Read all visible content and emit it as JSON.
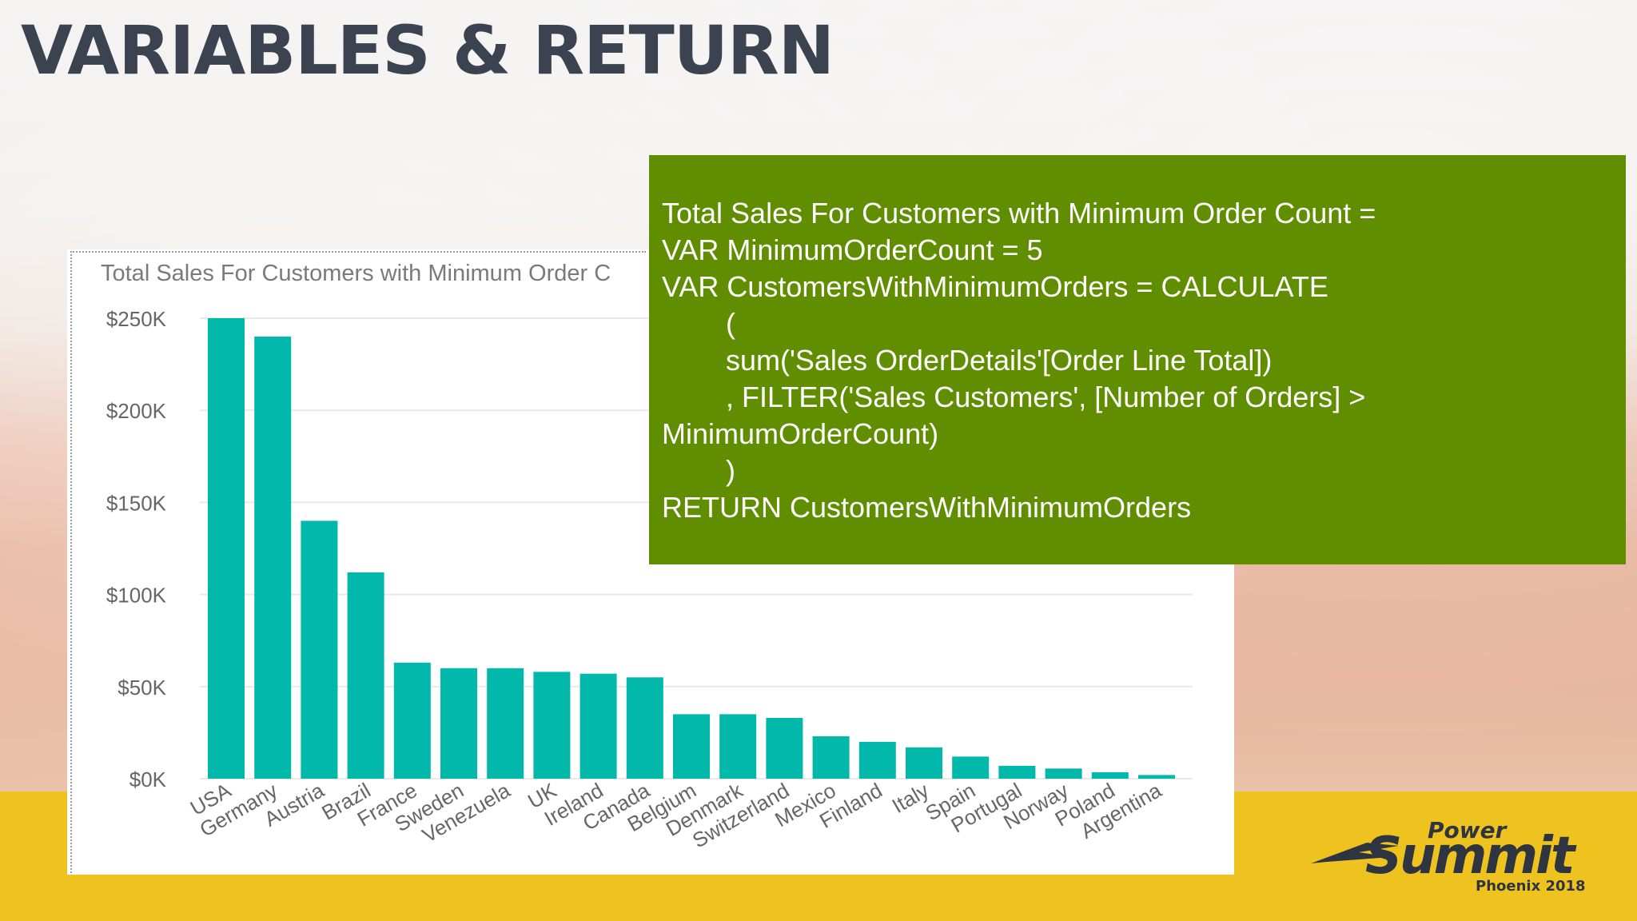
{
  "slide": {
    "title": "VARIABLES & RETURN"
  },
  "code": {
    "lines": [
      "Total Sales For Customers with Minimum Order Count =",
      "VAR MinimumOrderCount = 5",
      "VAR CustomersWithMinimumOrders = CALCULATE",
      "        (",
      "        sum('Sales OrderDetails'[Order Line Total])",
      "        , FILTER('Sales Customers', [Number of Orders] >",
      "MinimumOrderCount)",
      "        )",
      "RETURN CustomersWithMinimumOrders"
    ]
  },
  "chart_data": {
    "type": "bar",
    "title": "Total Sales For Customers with Minimum Order C",
    "xlabel": "",
    "ylabel": "",
    "ylim": [
      0,
      250000
    ],
    "yticks": [
      0,
      50000,
      100000,
      150000,
      200000,
      250000
    ],
    "ytick_labels": [
      "$0K",
      "$50K",
      "$100K",
      "$150K",
      "$200K",
      "$250K"
    ],
    "grid": true,
    "categories": [
      "USA",
      "Germany",
      "Austria",
      "Brazil",
      "France",
      "Sweden",
      "Venezuela",
      "UK",
      "Ireland",
      "Canada",
      "Belgium",
      "Denmark",
      "Switzerland",
      "Mexico",
      "Finland",
      "Italy",
      "Spain",
      "Portugal",
      "Norway",
      "Poland",
      "Argentina"
    ],
    "values": [
      250000,
      240000,
      140000,
      112000,
      63000,
      60000,
      60000,
      58000,
      57000,
      55000,
      35000,
      35000,
      33000,
      23000,
      20000,
      17000,
      12000,
      7000,
      5500,
      3500,
      2000
    ],
    "bar_color": "#01b8aa",
    "grid_color": "#e9e9e9"
  },
  "logo": {
    "top": "Power",
    "main": "Summit",
    "sub": "Phoenix 2018"
  },
  "colors": {
    "title": "#3b4250",
    "code_bg": "#618e00",
    "band": "#efc31f"
  }
}
